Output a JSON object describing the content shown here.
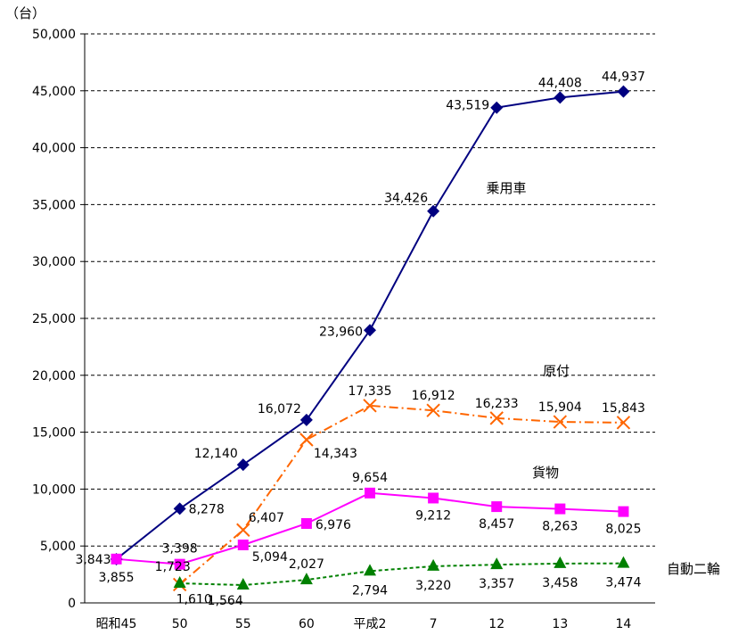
{
  "chart_data": {
    "type": "line",
    "unit_label": "（台）",
    "categories": [
      "昭和45",
      "50",
      "55",
      "60",
      "平成2",
      "7",
      "12",
      "13",
      "14"
    ],
    "ylim": [
      0,
      50000
    ],
    "yticks": [
      0,
      5000,
      10000,
      15000,
      20000,
      25000,
      30000,
      35000,
      40000,
      45000,
      50000
    ],
    "ytick_labels": [
      "0",
      "5,000",
      "10,000",
      "15,000",
      "20,000",
      "25,000",
      "30,000",
      "35,000",
      "40,000",
      "45,000",
      "50,000"
    ],
    "grid": "horizontal-dashed",
    "series": [
      {
        "name": "乗用車",
        "color": "#000080",
        "marker": "diamond",
        "line": "solid",
        "values": [
          3843,
          8278,
          12140,
          16072,
          23960,
          34426,
          43519,
          44408,
          44937
        ],
        "labels": [
          "3,843",
          "8,278",
          "12,140",
          "16,072",
          "23,960",
          "34,426",
          "43,519",
          "44,408",
          "44,937"
        ]
      },
      {
        "name": "原付",
        "color": "#FF6600",
        "marker": "x",
        "line": "dashdot",
        "values": [
          null,
          1610,
          6407,
          14343,
          17335,
          16912,
          16233,
          15904,
          15843
        ],
        "labels": [
          "",
          "1,610",
          "6,407",
          "14,343",
          "17,335",
          "16,912",
          "16,233",
          "15,904",
          "15,843"
        ]
      },
      {
        "name": "貨物",
        "color": "#FF00FF",
        "marker": "square",
        "line": "solid",
        "values": [
          3855,
          3398,
          5094,
          6976,
          9654,
          9212,
          8457,
          8263,
          8025
        ],
        "labels": [
          "3,855",
          "3,398",
          "5,094",
          "6,976",
          "9,654",
          "9,212",
          "8,457",
          "8,263",
          "8,025"
        ]
      },
      {
        "name": "自動二輪",
        "color": "#008000",
        "marker": "triangle",
        "line": "dotted",
        "values": [
          null,
          1723,
          1564,
          2027,
          2794,
          3220,
          3357,
          3458,
          3474
        ],
        "labels": [
          "",
          "1,723",
          "1,564",
          "2,027",
          "2,794",
          "3,220",
          "3,357",
          "3,458",
          "3,474"
        ]
      }
    ]
  }
}
